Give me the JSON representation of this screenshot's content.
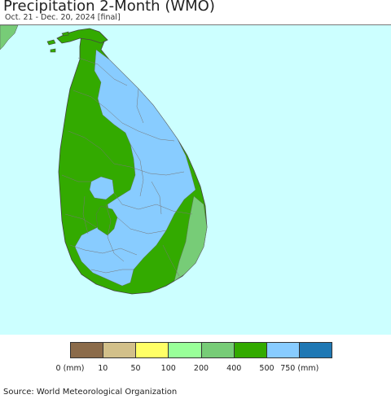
{
  "header": {
    "title": "Precipitation 2-Month (WMO)",
    "subtitle": "Oct. 21 - Dec. 20, 2024 [final]"
  },
  "map": {
    "ocean_color": "#ccffff",
    "land_color": "#33aa00",
    "border_color": "#777777",
    "region": "Sri Lanka"
  },
  "legend": {
    "swatches": [
      {
        "color": "#8b6b4a",
        "label": "0 (mm)"
      },
      {
        "color": "#d2c08a",
        "label": "10"
      },
      {
        "color": "#ffff66",
        "label": "50"
      },
      {
        "color": "#99ff99",
        "label": "100"
      },
      {
        "color": "#77cc77",
        "label": "200"
      },
      {
        "color": "#33aa00",
        "label": "400"
      },
      {
        "color": "#88ccff",
        "label": "500"
      },
      {
        "color": "#1f78b4",
        "label": "750 (mm)"
      }
    ]
  },
  "footer": {
    "source": "Source: World Meteorological Organization"
  }
}
